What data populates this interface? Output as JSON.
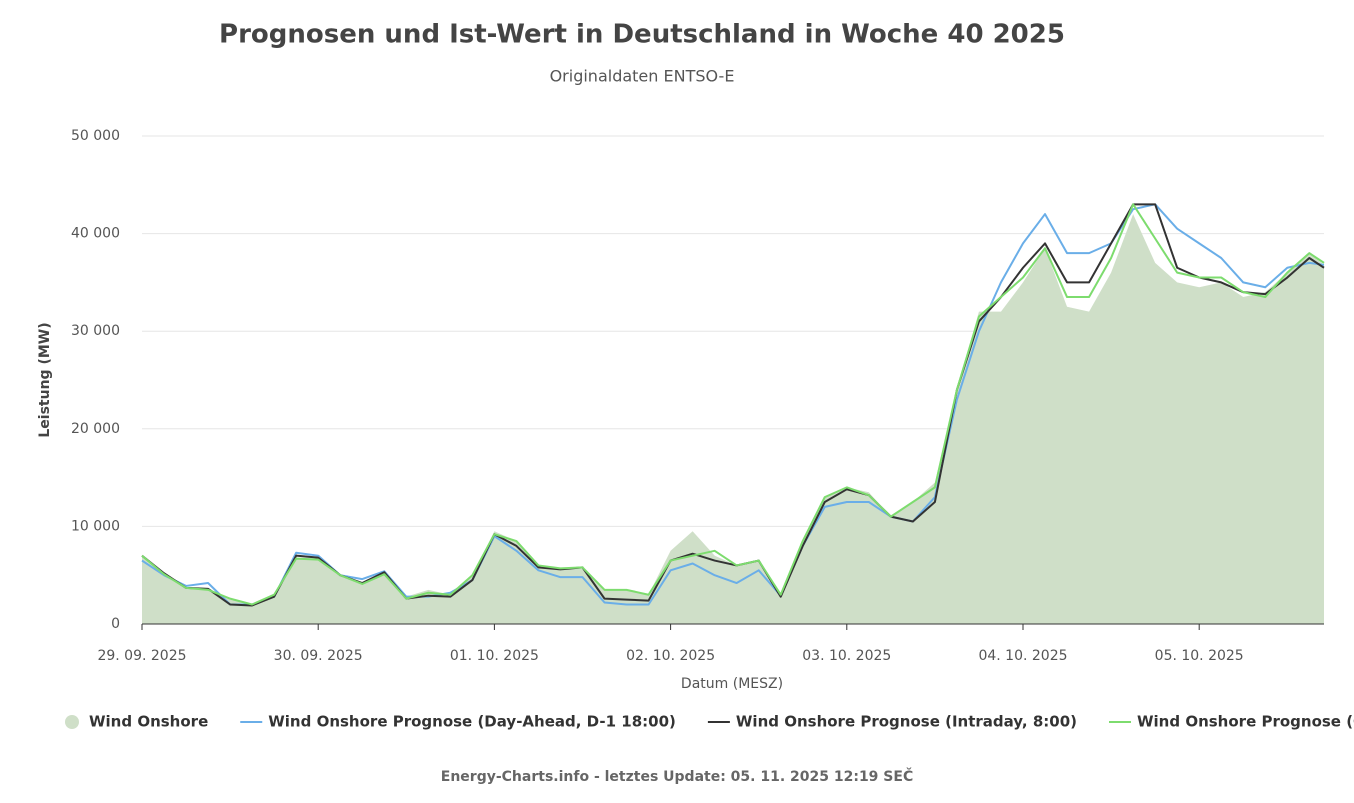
{
  "chart_data": {
    "type": "line",
    "title": "Prognosen und Ist-Wert in Deutschland in Woche 40 2025",
    "subtitle": "Originaldaten ENTSO-E",
    "x_label": "Datum (MESZ)",
    "y_label": "Leistung (MW)",
    "footer": "Energy-Charts.info - letztes Update: 05. 11. 2025 12:19 SEČ",
    "x": [
      "2025-09-29T00:00",
      "2025-09-29T03:00",
      "2025-09-29T06:00",
      "2025-09-29T09:00",
      "2025-09-29T12:00",
      "2025-09-29T15:00",
      "2025-09-29T18:00",
      "2025-09-29T21:00",
      "2025-09-30T00:00",
      "2025-09-30T03:00",
      "2025-09-30T06:00",
      "2025-09-30T09:00",
      "2025-09-30T12:00",
      "2025-09-30T15:00",
      "2025-09-30T18:00",
      "2025-09-30T21:00",
      "2025-10-01T00:00",
      "2025-10-01T03:00",
      "2025-10-01T06:00",
      "2025-10-01T09:00",
      "2025-10-01T12:00",
      "2025-10-01T15:00",
      "2025-10-01T18:00",
      "2025-10-01T21:00",
      "2025-10-02T00:00",
      "2025-10-02T03:00",
      "2025-10-02T06:00",
      "2025-10-02T09:00",
      "2025-10-02T12:00",
      "2025-10-02T15:00",
      "2025-10-02T18:00",
      "2025-10-02T21:00",
      "2025-10-03T00:00",
      "2025-10-03T03:00",
      "2025-10-03T06:00",
      "2025-10-03T09:00",
      "2025-10-03T12:00",
      "2025-10-03T15:00",
      "2025-10-03T18:00",
      "2025-10-03T21:00",
      "2025-10-04T00:00",
      "2025-10-04T03:00",
      "2025-10-04T06:00",
      "2025-10-04T09:00",
      "2025-10-04T12:00",
      "2025-10-04T15:00",
      "2025-10-04T18:00",
      "2025-10-04T21:00",
      "2025-10-05T00:00",
      "2025-10-05T03:00",
      "2025-10-05T06:00",
      "2025-10-05T09:00",
      "2025-10-05T12:00",
      "2025-10-05T15:00",
      "2025-10-05T17:00"
    ],
    "series": [
      {
        "name": "Wind Onshore",
        "type": "area",
        "color": "#cfdfc8",
        "values": [
          7000,
          5000,
          3800,
          3700,
          2500,
          2000,
          3000,
          6800,
          6800,
          5000,
          4200,
          5300,
          2800,
          3500,
          3000,
          5000,
          9500,
          8500,
          6000,
          5500,
          5800,
          3500,
          3500,
          3000,
          7500,
          9500,
          7000,
          6000,
          6500,
          3000,
          8500,
          13000,
          14000,
          13500,
          11000,
          12500,
          14500,
          24000,
          32000,
          32000,
          35000,
          38500,
          32500,
          32000,
          36000,
          42000,
          37000,
          35000,
          34500,
          35000,
          33500,
          34000,
          36000,
          38000,
          36800
        ]
      },
      {
        "name": "Wind Onshore Prognose (Day-Ahead, D-1 18:00)",
        "type": "line",
        "color": "#6aaee8",
        "values": [
          6500,
          5000,
          3900,
          4200,
          2000,
          2000,
          2800,
          7300,
          7000,
          5000,
          4600,
          5400,
          2800,
          2800,
          3200,
          4500,
          9000,
          7500,
          5500,
          4800,
          4800,
          2200,
          2000,
          2000,
          5500,
          6200,
          5000,
          4200,
          5500,
          2900,
          8000,
          12000,
          12500,
          12500,
          11000,
          10500,
          13000,
          23000,
          30000,
          35000,
          39000,
          42000,
          38000,
          38000,
          39000,
          42500,
          43000,
          40500,
          39000,
          37500,
          35000,
          34500,
          36500,
          37000,
          36800
        ]
      },
      {
        "name": "Wind Onshore Prognose (Intraday, 8:00)",
        "type": "line",
        "color": "#333333",
        "values": [
          7000,
          5200,
          3700,
          3600,
          2000,
          1900,
          2800,
          7000,
          6800,
          5000,
          4200,
          5300,
          2600,
          2900,
          2800,
          4500,
          9200,
          8000,
          5800,
          5600,
          5800,
          2600,
          2500,
          2400,
          6500,
          7200,
          6500,
          6000,
          6500,
          2800,
          8000,
          12500,
          13800,
          13200,
          11000,
          10500,
          12500,
          24000,
          31000,
          33500,
          36500,
          39000,
          35000,
          35000,
          39000,
          43000,
          43000,
          36500,
          35500,
          35000,
          34000,
          33800,
          35500,
          37500,
          36500
        ]
      },
      {
        "name": "Wind Onshore Prognose (Current)",
        "type": "line",
        "color": "#7ddc6e",
        "values": [
          7000,
          5100,
          3700,
          3500,
          2600,
          2000,
          3000,
          6700,
          6600,
          5000,
          4100,
          5100,
          2600,
          3200,
          3000,
          5000,
          9200,
          8500,
          6000,
          5700,
          5800,
          3500,
          3500,
          3000,
          6500,
          7000,
          7500,
          6000,
          6500,
          3000,
          8500,
          13000,
          14000,
          13200,
          11000,
          12500,
          14000,
          24000,
          31500,
          33500,
          35500,
          38500,
          33500,
          33500,
          37500,
          43000,
          39500,
          36000,
          35500,
          35500,
          34000,
          33500,
          36000,
          38000,
          37000
        ]
      }
    ],
    "xlim": [
      "2025-09-29T00:00",
      "2025-10-05T17:00"
    ],
    "xticks": [
      {
        "value": "2025-09-29T00:00",
        "label": "29. 09. 2025"
      },
      {
        "value": "2025-09-30T00:00",
        "label": "30. 09. 2025"
      },
      {
        "value": "2025-10-01T00:00",
        "label": "01. 10. 2025"
      },
      {
        "value": "2025-10-02T00:00",
        "label": "02. 10. 2025"
      },
      {
        "value": "2025-10-03T00:00",
        "label": "03. 10. 2025"
      },
      {
        "value": "2025-10-04T00:00",
        "label": "04. 10. 2025"
      },
      {
        "value": "2025-10-05T00:00",
        "label": "05. 10. 2025"
      }
    ],
    "ylim": [
      0,
      50000
    ],
    "yticks": [
      0,
      {
        "value": 10000,
        "label": "10 000"
      },
      {
        "value": 20000,
        "label": "20 000"
      },
      {
        "value": 30000,
        "label": "30 000"
      },
      {
        "value": 40000,
        "label": "40 000"
      },
      {
        "value": 50000,
        "label": "50 000"
      }
    ],
    "grid": true,
    "legend": "bottom"
  }
}
